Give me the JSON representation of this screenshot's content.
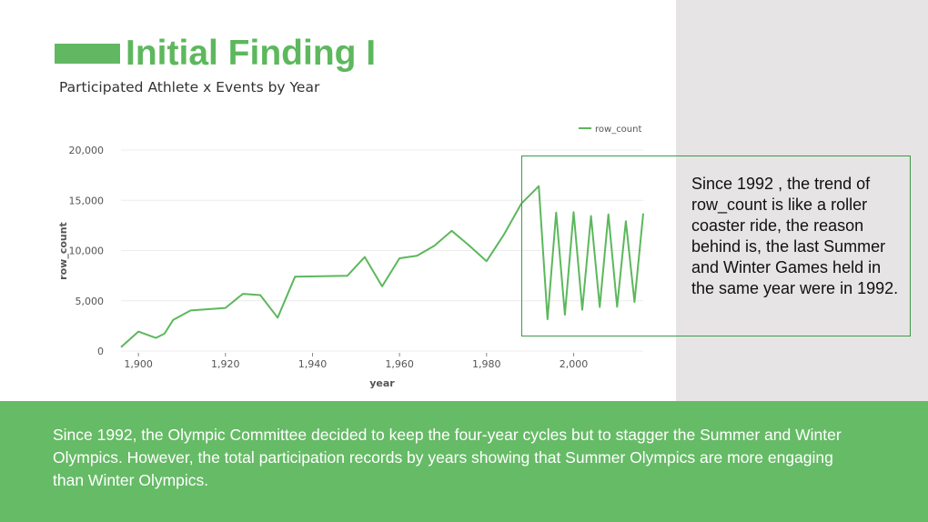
{
  "slide": {
    "title": "Initial Finding I",
    "subtitle": "Participated Athlete x Events by Year",
    "callout": "Since 1992 , the trend of row_count is like a roller coaster ride, the reason behind is, the last Summer and Winter Games held in the same year were in 1992.",
    "banner": "Since 1992, the Olympic Committee decided to keep the four-year cycles but to stagger the Summer and Winter Olympics. However, the total participation records by years showing that Summer Olympics are more engaging than Winter Olympics.",
    "colors": {
      "accent": "#5db85d",
      "banner": "#66bb66",
      "panel": "#e6e4e4",
      "line": "#5cb85c",
      "callout_border": "#3e9a48"
    }
  },
  "chart_data": {
    "type": "line",
    "xlabel": "year",
    "ylabel": "row_count",
    "xlim": [
      1896,
      2016
    ],
    "ylim": [
      0,
      20000
    ],
    "x_ticks": [
      1900,
      1920,
      1940,
      1960,
      1980,
      2000
    ],
    "y_ticks": [
      0,
      5000,
      10000,
      15000,
      20000
    ],
    "x_tick_labels": [
      "1,900",
      "1,920",
      "1,940",
      "1,960",
      "1,980",
      "2,000"
    ],
    "y_tick_labels": [
      "0",
      "5,000",
      "10,000",
      "15,000",
      "20,000"
    ],
    "legend_position": "top-right",
    "grid": true,
    "series": [
      {
        "name": "row_count",
        "x": [
          1896,
          1900,
          1904,
          1906,
          1908,
          1912,
          1920,
          1924,
          1928,
          1932,
          1936,
          1948,
          1952,
          1956,
          1960,
          1964,
          1968,
          1972,
          1976,
          1980,
          1984,
          1988,
          1992,
          1994,
          1996,
          1998,
          2000,
          2002,
          2004,
          2006,
          2008,
          2010,
          2012,
          2014,
          2016
        ],
        "y": [
          380,
          1940,
          1300,
          1730,
          3100,
          4040,
          4290,
          5690,
          5570,
          3320,
          7400,
          7480,
          9360,
          6430,
          9230,
          9480,
          10480,
          11960,
          10500,
          8940,
          11590,
          14680,
          16410,
          3160,
          13780,
          3610,
          13820,
          4110,
          13440,
          4380,
          13600,
          4400,
          12920,
          4890,
          13690
        ]
      }
    ]
  }
}
